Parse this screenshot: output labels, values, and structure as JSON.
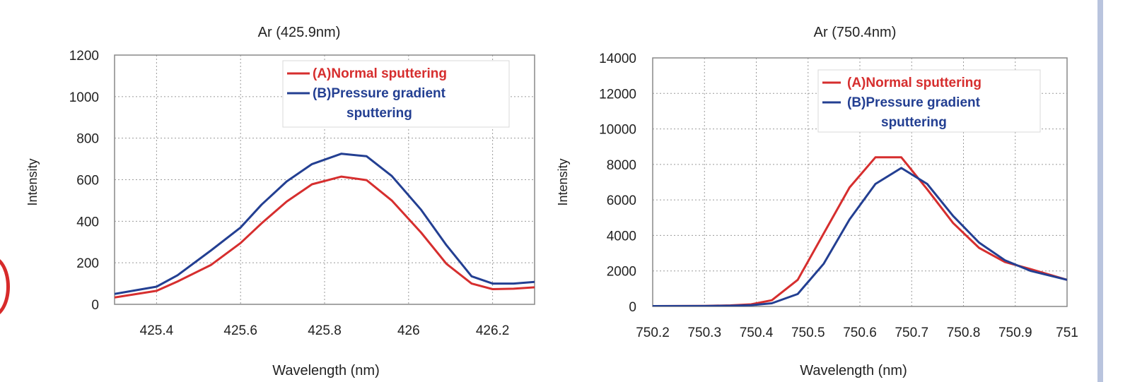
{
  "colors": {
    "red": "#d62e2e",
    "blue": "#233f92",
    "grid": "#9a9a9a",
    "axis": "#888888",
    "accent_bar": "#b9c4de"
  },
  "chart_data": [
    {
      "type": "line",
      "title": "Ar (425.9nm)",
      "xlabel": "Wavelength (nm)",
      "ylabel": "Intensity",
      "xlim": [
        425.3,
        426.3
      ],
      "ylim": [
        0,
        1200
      ],
      "xticks": [
        425.4,
        425.6,
        425.8,
        426,
        426.2
      ],
      "xtick_labels": [
        "425.4",
        "425.6",
        "425.8",
        "426",
        "426.2"
      ],
      "yticks": [
        0,
        200,
        400,
        600,
        800,
        1000,
        1200
      ],
      "ytick_labels": [
        "0",
        "200",
        "400",
        "600",
        "800",
        "1000",
        "1200"
      ],
      "grid": true,
      "legend_position": "top-right",
      "series": [
        {
          "name": "(A)Normal sputtering",
          "color": "#d62e2e",
          "points": [
            [
              425.3,
              33
            ],
            [
              425.4,
              65
            ],
            [
              425.45,
              110
            ],
            [
              425.53,
              190
            ],
            [
              425.6,
              295
            ],
            [
              425.65,
              390
            ],
            [
              425.71,
              495
            ],
            [
              425.77,
              578
            ],
            [
              425.84,
              615
            ],
            [
              425.9,
              598
            ],
            [
              425.96,
              500
            ],
            [
              426.03,
              345
            ],
            [
              426.09,
              195
            ],
            [
              426.15,
              100
            ],
            [
              426.2,
              73
            ],
            [
              426.25,
              75
            ],
            [
              426.3,
              82
            ]
          ]
        },
        {
          "name": "(B)Pressure gradient sputtering",
          "color": "#233f92",
          "points": [
            [
              425.3,
              50
            ],
            [
              425.4,
              85
            ],
            [
              425.45,
              140
            ],
            [
              425.53,
              260
            ],
            [
              425.6,
              370
            ],
            [
              425.65,
              480
            ],
            [
              425.71,
              592
            ],
            [
              425.77,
              675
            ],
            [
              425.84,
              725
            ],
            [
              425.9,
              713
            ],
            [
              425.96,
              618
            ],
            [
              426.03,
              455
            ],
            [
              426.09,
              285
            ],
            [
              426.15,
              135
            ],
            [
              426.2,
              100
            ],
            [
              426.25,
              100
            ],
            [
              426.3,
              108
            ]
          ]
        }
      ],
      "legend_labels": [
        {
          "lines": [
            "(A)Normal sputtering"
          ],
          "color": "#d62e2e"
        },
        {
          "lines": [
            "(B)Pressure gradient",
            "sputtering"
          ],
          "color": "#233f92"
        }
      ]
    },
    {
      "type": "line",
      "title": "Ar (750.4nm)",
      "xlabel": "Wavelength (nm)",
      "ylabel": "Intensity",
      "xlim": [
        750.2,
        751
      ],
      "ylim": [
        0,
        14000
      ],
      "xticks": [
        750.2,
        750.3,
        750.4,
        750.5,
        750.6,
        750.7,
        750.8,
        750.9,
        751
      ],
      "xtick_labels": [
        "750.2",
        "750.3",
        "750.4",
        "750.5",
        "750.6",
        "750.7",
        "750.8",
        "750.9",
        "751"
      ],
      "yticks": [
        0,
        2000,
        4000,
        6000,
        8000,
        10000,
        12000,
        14000
      ],
      "ytick_labels": [
        "0",
        "2000",
        "4000",
        "6000",
        "8000",
        "10000",
        "12000",
        "14000"
      ],
      "grid": true,
      "legend_position": "top-right",
      "series": [
        {
          "name": "(A)Normal sputtering",
          "color": "#d62e2e",
          "points": [
            [
              750.2,
              20
            ],
            [
              750.3,
              30
            ],
            [
              750.35,
              60
            ],
            [
              750.39,
              120
            ],
            [
              750.43,
              350
            ],
            [
              750.48,
              1500
            ],
            [
              750.53,
              4100
            ],
            [
              750.58,
              6700
            ],
            [
              750.63,
              8400
            ],
            [
              750.68,
              8400
            ],
            [
              750.73,
              6600
            ],
            [
              750.78,
              4700
            ],
            [
              750.83,
              3300
            ],
            [
              750.88,
              2500
            ],
            [
              750.93,
              2100
            ],
            [
              751,
              1500
            ]
          ]
        },
        {
          "name": "(B)Pressure gradient sputtering",
          "color": "#233f92",
          "points": [
            [
              750.2,
              20
            ],
            [
              750.3,
              25
            ],
            [
              750.35,
              40
            ],
            [
              750.39,
              70
            ],
            [
              750.43,
              180
            ],
            [
              750.48,
              700
            ],
            [
              750.53,
              2400
            ],
            [
              750.58,
              4900
            ],
            [
              750.63,
              6900
            ],
            [
              750.68,
              7800
            ],
            [
              750.73,
              6900
            ],
            [
              750.78,
              5100
            ],
            [
              750.83,
              3600
            ],
            [
              750.88,
              2600
            ],
            [
              750.93,
              2000
            ],
            [
              751,
              1500
            ]
          ]
        }
      ],
      "legend_labels": [
        {
          "lines": [
            "(A)Normal sputtering"
          ],
          "color": "#d62e2e"
        },
        {
          "lines": [
            "(B)Pressure gradient",
            "sputtering"
          ],
          "color": "#233f92"
        }
      ]
    }
  ]
}
